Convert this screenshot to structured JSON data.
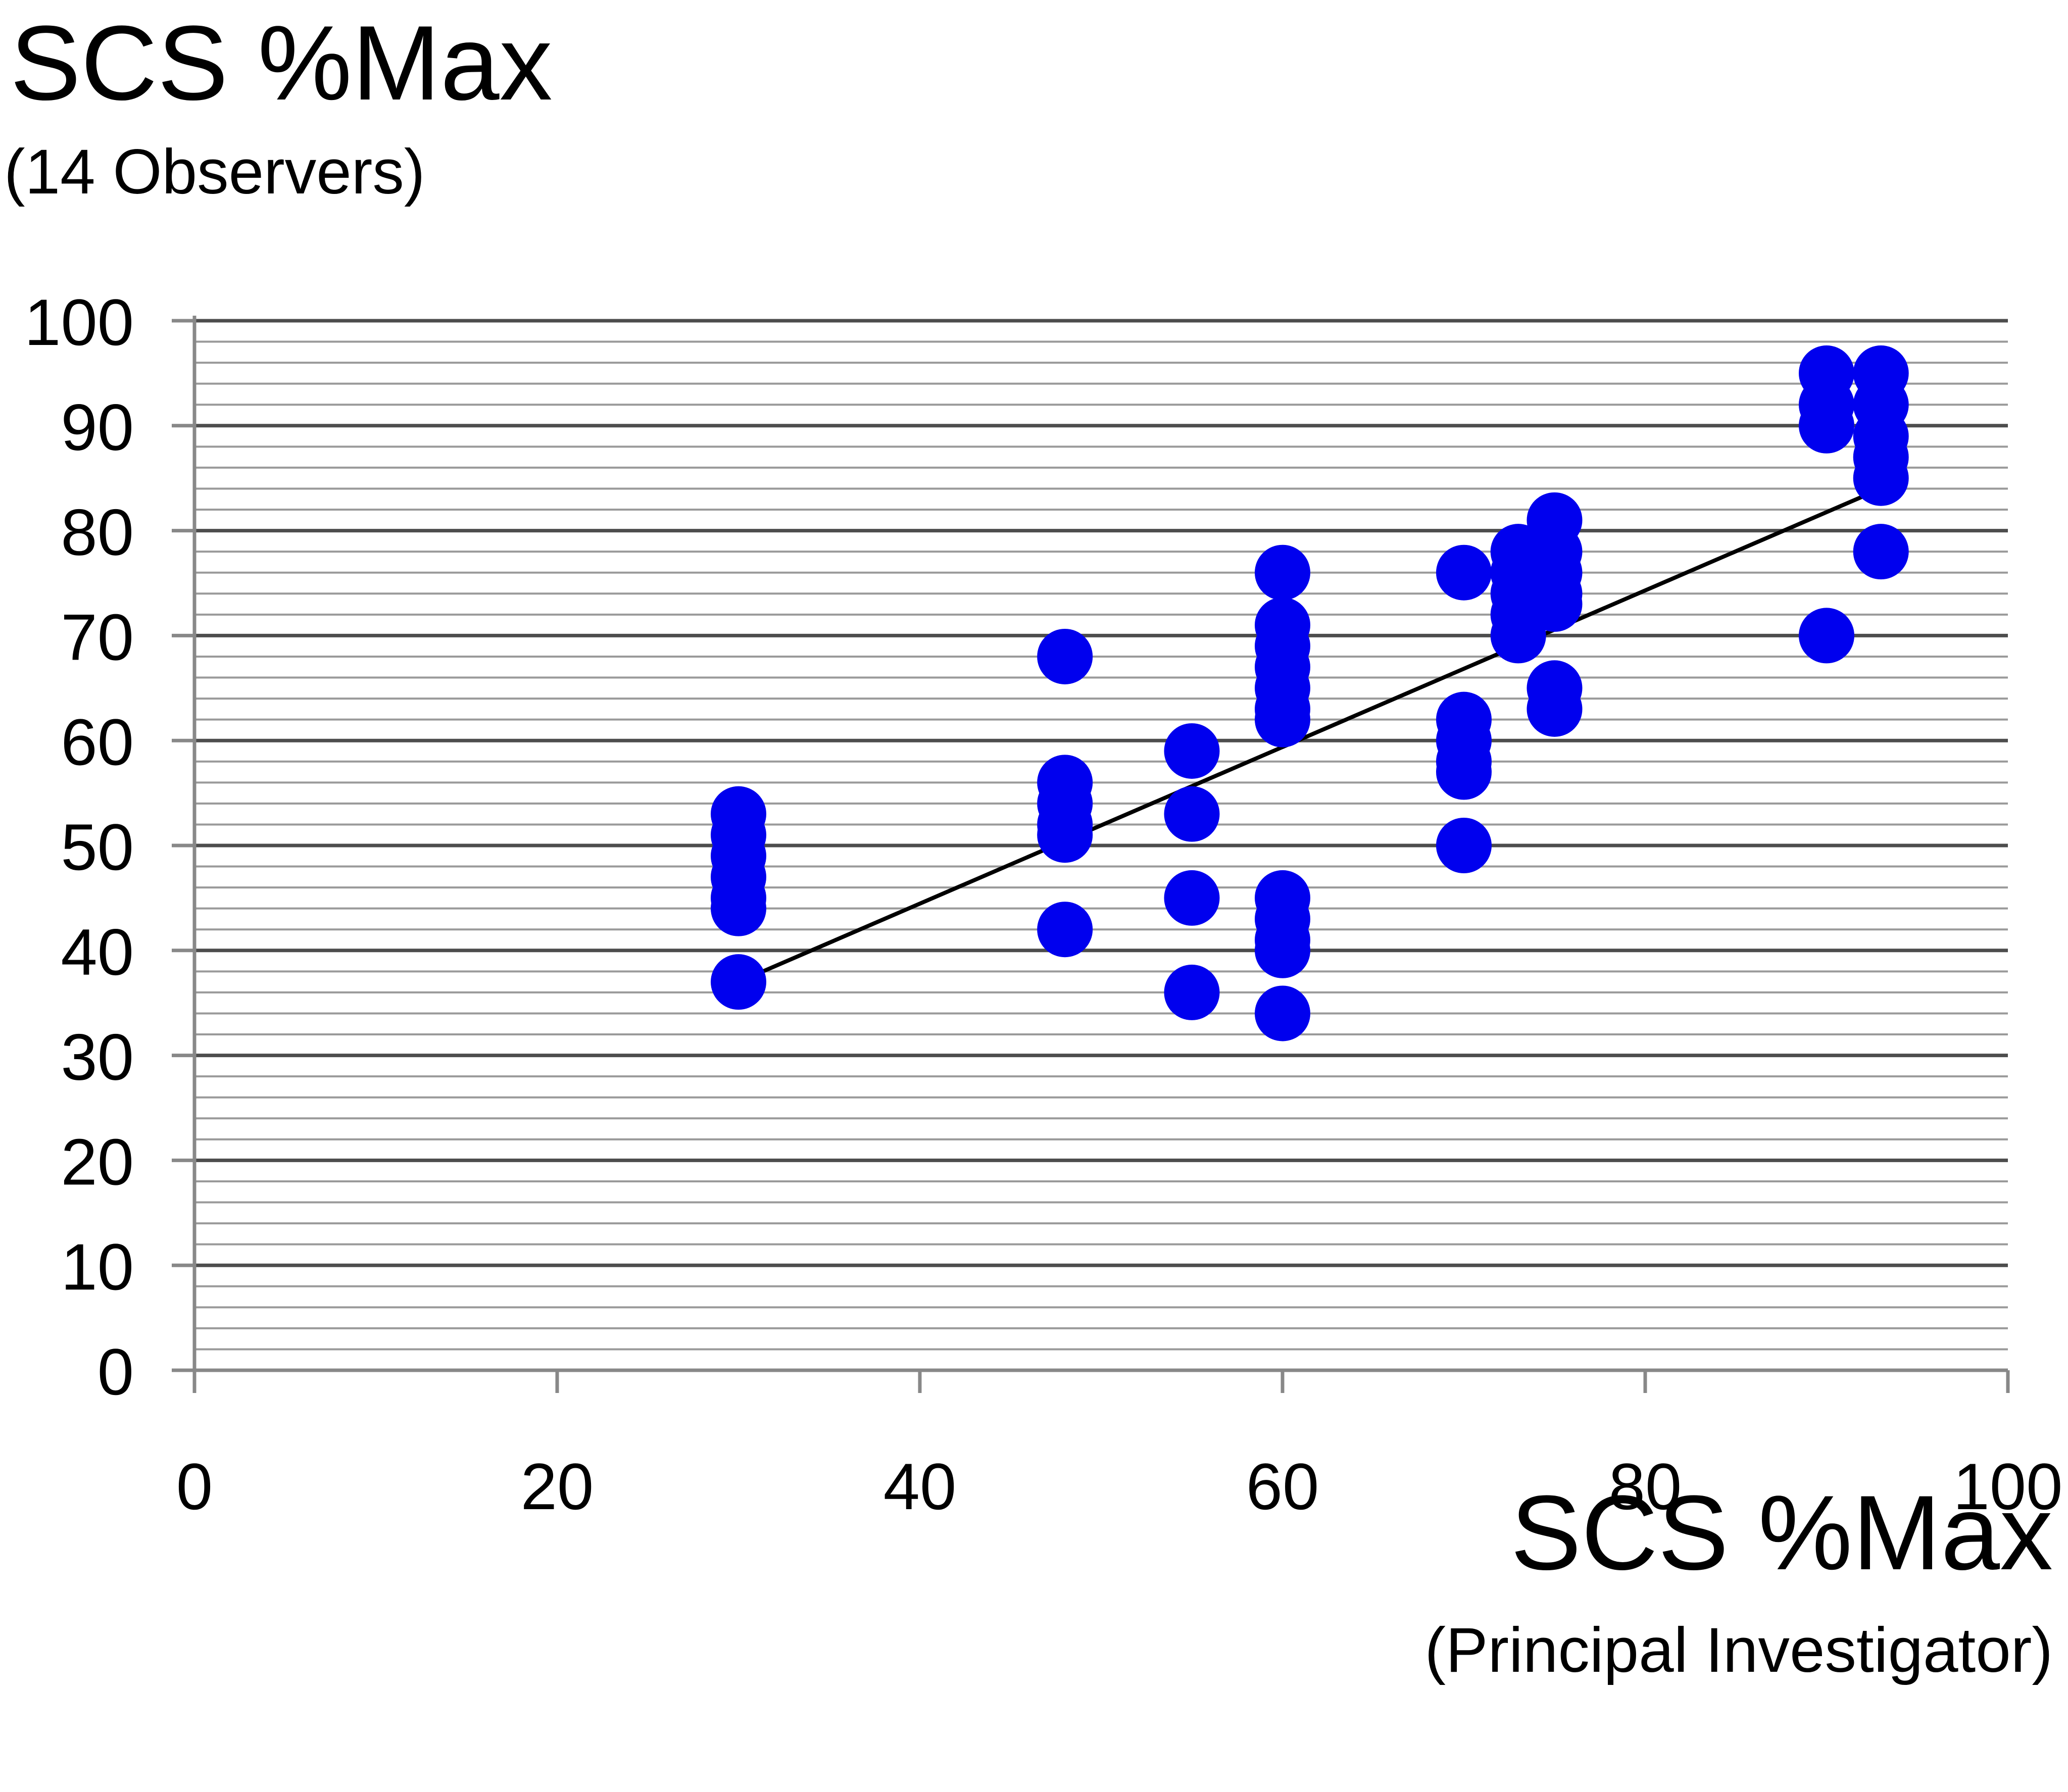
{
  "chart_data": {
    "type": "scatter",
    "ylabel": "SCS %Max",
    "ylabel_sub": "(14 Observers)",
    "xlabel": "SCS %Max",
    "xlabel_sub": "(Principal Investigator)",
    "xlim": [
      0,
      100
    ],
    "ylim": [
      0,
      100
    ],
    "x_ticks": [
      0,
      20,
      40,
      60,
      80,
      100
    ],
    "y_ticks": [
      0,
      10,
      20,
      30,
      40,
      50,
      60,
      70,
      80,
      90,
      100
    ],
    "grid": true,
    "point_color": "#0000ee",
    "line_color": "#000000",
    "trendline": {
      "x": [
        30,
        93
      ],
      "y": [
        37,
        84
      ]
    },
    "points": [
      {
        "x": 30,
        "y": 53
      },
      {
        "x": 30,
        "y": 51
      },
      {
        "x": 30,
        "y": 49
      },
      {
        "x": 30,
        "y": 47
      },
      {
        "x": 30,
        "y": 45
      },
      {
        "x": 30,
        "y": 44
      },
      {
        "x": 30,
        "y": 37
      },
      {
        "x": 48,
        "y": 68
      },
      {
        "x": 48,
        "y": 56
      },
      {
        "x": 48,
        "y": 54
      },
      {
        "x": 48,
        "y": 52
      },
      {
        "x": 48,
        "y": 51
      },
      {
        "x": 48,
        "y": 42
      },
      {
        "x": 55,
        "y": 59
      },
      {
        "x": 55,
        "y": 53
      },
      {
        "x": 55,
        "y": 45
      },
      {
        "x": 55,
        "y": 36
      },
      {
        "x": 60,
        "y": 76
      },
      {
        "x": 60,
        "y": 71
      },
      {
        "x": 60,
        "y": 69
      },
      {
        "x": 60,
        "y": 67
      },
      {
        "x": 60,
        "y": 65
      },
      {
        "x": 60,
        "y": 63
      },
      {
        "x": 60,
        "y": 62
      },
      {
        "x": 60,
        "y": 45
      },
      {
        "x": 60,
        "y": 43
      },
      {
        "x": 60,
        "y": 41
      },
      {
        "x": 60,
        "y": 40
      },
      {
        "x": 60,
        "y": 34
      },
      {
        "x": 70,
        "y": 76
      },
      {
        "x": 70,
        "y": 62
      },
      {
        "x": 70,
        "y": 60
      },
      {
        "x": 70,
        "y": 58
      },
      {
        "x": 70,
        "y": 57
      },
      {
        "x": 70,
        "y": 50
      },
      {
        "x": 73,
        "y": 78
      },
      {
        "x": 73,
        "y": 76
      },
      {
        "x": 73,
        "y": 74
      },
      {
        "x": 73,
        "y": 72
      },
      {
        "x": 73,
        "y": 70
      },
      {
        "x": 75,
        "y": 81
      },
      {
        "x": 75,
        "y": 78
      },
      {
        "x": 75,
        "y": 76
      },
      {
        "x": 75,
        "y": 74
      },
      {
        "x": 75,
        "y": 73
      },
      {
        "x": 75,
        "y": 65
      },
      {
        "x": 75,
        "y": 63
      },
      {
        "x": 90,
        "y": 95
      },
      {
        "x": 90,
        "y": 92
      },
      {
        "x": 90,
        "y": 90
      },
      {
        "x": 90,
        "y": 70
      },
      {
        "x": 93,
        "y": 95
      },
      {
        "x": 93,
        "y": 92
      },
      {
        "x": 93,
        "y": 89
      },
      {
        "x": 93,
        "y": 87
      },
      {
        "x": 93,
        "y": 85
      },
      {
        "x": 93,
        "y": 78
      }
    ]
  }
}
